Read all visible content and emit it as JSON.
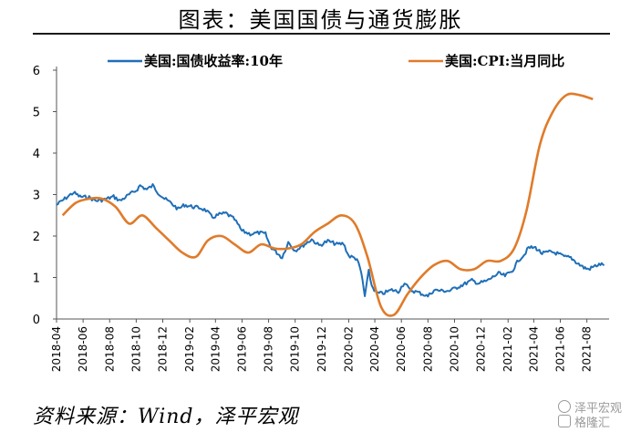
{
  "title": "图表：美国国债与通货膨胀",
  "source": "资料来源：Wind，泽平宏观",
  "watermark": {
    "line1": "泽平宏观",
    "line2": "格隆汇"
  },
  "chart_data": {
    "type": "line",
    "title": "图表：美国国债与通货膨胀",
    "xlabel": "",
    "ylabel": "",
    "ylim": [
      0,
      6
    ],
    "yticks": [
      0,
      1,
      2,
      3,
      4,
      5,
      6
    ],
    "x_range": [
      "2018-04",
      "2021-09"
    ],
    "xticks": [
      "2018-04",
      "2018-06",
      "2018-08",
      "2018-10",
      "2018-12",
      "2019-02",
      "2019-04",
      "2019-06",
      "2019-08",
      "2019-10",
      "2019-12",
      "2020-02",
      "2020-04",
      "2020-06",
      "2020-08",
      "2020-10",
      "2020-12",
      "2021-02",
      "2021-04",
      "2021-06",
      "2021-08"
    ],
    "grid": false,
    "legend_position": "top",
    "series": [
      {
        "name": "美国:国债收益率:10年",
        "color": "#1f6fb8",
        "points": [
          [
            "2018-04-01",
            2.75
          ],
          [
            "2018-04-20",
            2.9
          ],
          [
            "2018-05-10",
            3.05
          ],
          [
            "2018-05-25",
            2.95
          ],
          [
            "2018-06-15",
            2.93
          ],
          [
            "2018-07-01",
            2.85
          ],
          [
            "2018-07-20",
            2.88
          ],
          [
            "2018-08-10",
            2.95
          ],
          [
            "2018-08-25",
            2.85
          ],
          [
            "2018-09-15",
            3.0
          ],
          [
            "2018-10-01",
            3.1
          ],
          [
            "2018-10-10",
            3.22
          ],
          [
            "2018-10-25",
            3.12
          ],
          [
            "2018-11-08",
            3.22
          ],
          [
            "2018-11-20",
            3.05
          ],
          [
            "2018-12-05",
            2.9
          ],
          [
            "2018-12-20",
            2.8
          ],
          [
            "2019-01-05",
            2.65
          ],
          [
            "2019-01-20",
            2.75
          ],
          [
            "2019-02-10",
            2.7
          ],
          [
            "2019-02-25",
            2.68
          ],
          [
            "2019-03-10",
            2.62
          ],
          [
            "2019-03-25",
            2.45
          ],
          [
            "2019-04-10",
            2.52
          ],
          [
            "2019-04-25",
            2.55
          ],
          [
            "2019-05-15",
            2.4
          ],
          [
            "2019-06-01",
            2.12
          ],
          [
            "2019-06-20",
            2.05
          ],
          [
            "2019-07-10",
            2.08
          ],
          [
            "2019-07-25",
            2.05
          ],
          [
            "2019-08-05",
            1.75
          ],
          [
            "2019-08-20",
            1.6
          ],
          [
            "2019-09-01",
            1.48
          ],
          [
            "2019-09-15",
            1.85
          ],
          [
            "2019-10-01",
            1.65
          ],
          [
            "2019-10-20",
            1.78
          ],
          [
            "2019-11-08",
            1.92
          ],
          [
            "2019-11-25",
            1.77
          ],
          [
            "2019-12-15",
            1.88
          ],
          [
            "2020-01-05",
            1.8
          ],
          [
            "2020-01-20",
            1.82
          ],
          [
            "2020-02-01",
            1.52
          ],
          [
            "2020-02-20",
            1.45
          ],
          [
            "2020-03-01",
            1.1
          ],
          [
            "2020-03-09",
            0.55
          ],
          [
            "2020-03-18",
            1.15
          ],
          [
            "2020-03-25",
            0.8
          ],
          [
            "2020-04-05",
            0.62
          ],
          [
            "2020-04-20",
            0.62
          ],
          [
            "2020-05-10",
            0.7
          ],
          [
            "2020-05-25",
            0.66
          ],
          [
            "2020-06-08",
            0.88
          ],
          [
            "2020-06-20",
            0.7
          ],
          [
            "2020-07-10",
            0.64
          ],
          [
            "2020-08-01",
            0.55
          ],
          [
            "2020-08-15",
            0.7
          ],
          [
            "2020-09-01",
            0.68
          ],
          [
            "2020-09-20",
            0.68
          ],
          [
            "2020-10-10",
            0.78
          ],
          [
            "2020-10-25",
            0.85
          ],
          [
            "2020-11-10",
            0.93
          ],
          [
            "2020-11-25",
            0.86
          ],
          [
            "2020-12-15",
            0.92
          ],
          [
            "2021-01-10",
            1.1
          ],
          [
            "2021-01-25",
            1.04
          ],
          [
            "2021-02-10",
            1.15
          ],
          [
            "2021-02-25",
            1.42
          ],
          [
            "2021-03-10",
            1.55
          ],
          [
            "2021-03-20",
            1.72
          ],
          [
            "2021-04-05",
            1.72
          ],
          [
            "2021-04-20",
            1.58
          ],
          [
            "2021-05-10",
            1.62
          ],
          [
            "2021-05-25",
            1.58
          ],
          [
            "2021-06-10",
            1.5
          ],
          [
            "2021-06-25",
            1.48
          ],
          [
            "2021-07-10",
            1.35
          ],
          [
            "2021-07-25",
            1.24
          ],
          [
            "2021-08-05",
            1.2
          ],
          [
            "2021-08-20",
            1.28
          ],
          [
            "2021-09-01",
            1.32
          ],
          [
            "2021-09-10",
            1.3
          ]
        ]
      },
      {
        "name": "美国:CPI:当月同比",
        "color": "#e07b2a",
        "points": [
          [
            "2018-04-15",
            2.5
          ],
          [
            "2018-05-15",
            2.8
          ],
          [
            "2018-06-15",
            2.9
          ],
          [
            "2018-07-15",
            2.9
          ],
          [
            "2018-08-15",
            2.7
          ],
          [
            "2018-09-15",
            2.3
          ],
          [
            "2018-10-15",
            2.5
          ],
          [
            "2018-11-15",
            2.2
          ],
          [
            "2018-12-15",
            1.9
          ],
          [
            "2019-01-15",
            1.6
          ],
          [
            "2019-02-15",
            1.5
          ],
          [
            "2019-03-15",
            1.9
          ],
          [
            "2019-04-15",
            2.0
          ],
          [
            "2019-05-15",
            1.8
          ],
          [
            "2019-06-15",
            1.6
          ],
          [
            "2019-07-15",
            1.8
          ],
          [
            "2019-08-15",
            1.7
          ],
          [
            "2019-09-15",
            1.7
          ],
          [
            "2019-10-15",
            1.8
          ],
          [
            "2019-11-15",
            2.1
          ],
          [
            "2019-12-15",
            2.3
          ],
          [
            "2020-01-15",
            2.5
          ],
          [
            "2020-02-15",
            2.3
          ],
          [
            "2020-03-15",
            1.5
          ],
          [
            "2020-04-15",
            0.3
          ],
          [
            "2020-05-15",
            0.1
          ],
          [
            "2020-06-15",
            0.6
          ],
          [
            "2020-07-15",
            1.0
          ],
          [
            "2020-08-15",
            1.3
          ],
          [
            "2020-09-15",
            1.4
          ],
          [
            "2020-10-15",
            1.2
          ],
          [
            "2020-11-15",
            1.2
          ],
          [
            "2020-12-15",
            1.4
          ],
          [
            "2021-01-15",
            1.4
          ],
          [
            "2021-02-15",
            1.7
          ],
          [
            "2021-03-15",
            2.6
          ],
          [
            "2021-04-15",
            4.2
          ],
          [
            "2021-05-15",
            5.0
          ],
          [
            "2021-06-15",
            5.4
          ],
          [
            "2021-07-15",
            5.4
          ],
          [
            "2021-08-15",
            5.3
          ]
        ]
      }
    ]
  }
}
